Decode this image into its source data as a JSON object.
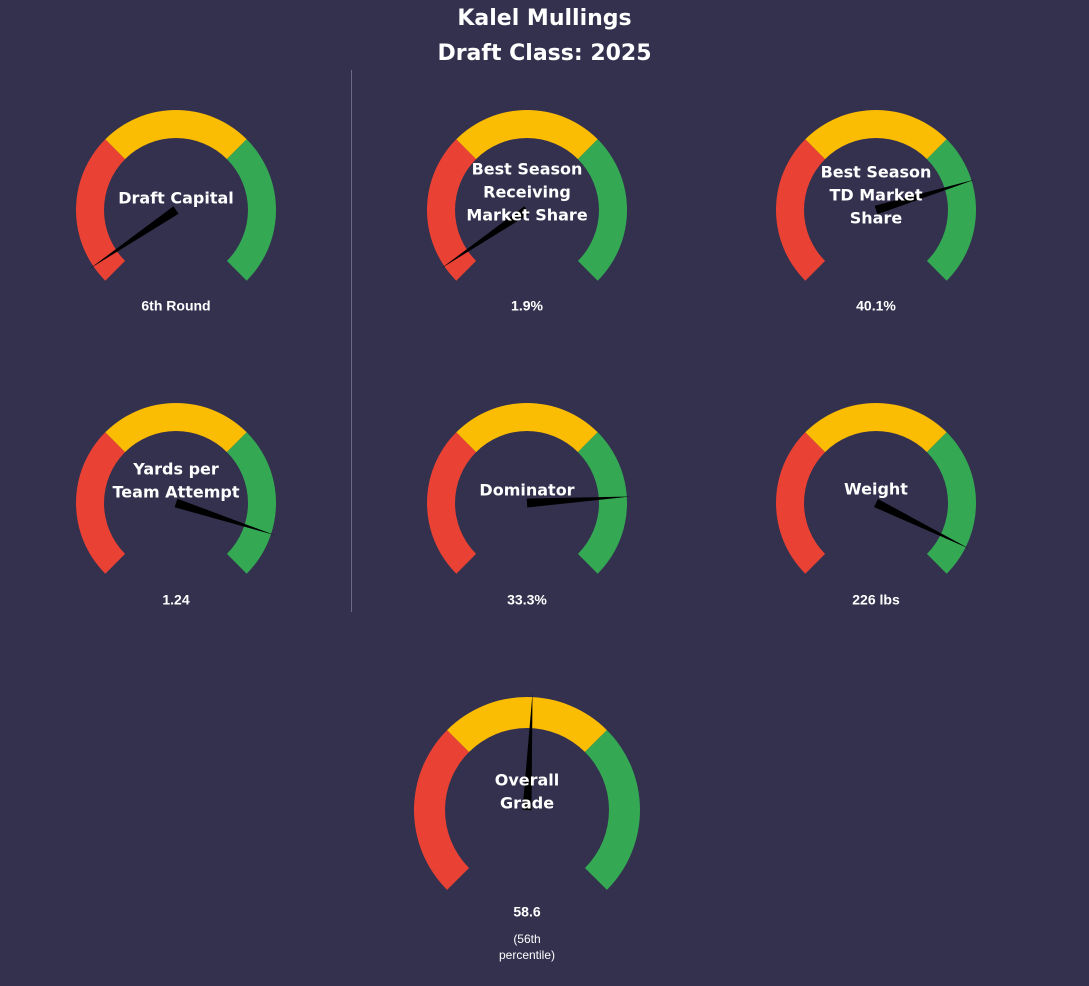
{
  "header": {
    "player_name": "Kalel Mullings",
    "draft_class": "Draft Class: 2025"
  },
  "colors": {
    "background": "#33314e",
    "low_zone": "#e94234",
    "mid_zone": "#fbbc04",
    "high_zone": "#34a853",
    "needle": "#000000",
    "text": "#ffffff"
  },
  "chart_data": [
    {
      "type": "gauge",
      "id": "draft-capital",
      "title_lines": [
        "Draft Capital"
      ],
      "value_label": "6th Round",
      "needle_fraction": 0.04
    },
    {
      "type": "gauge",
      "id": "receiving-market-share",
      "title_lines": [
        "Best Season",
        "Receiving",
        "Market Share"
      ],
      "value_label": "1.9%",
      "needle_fraction": 0.04
    },
    {
      "type": "gauge",
      "id": "td-market-share",
      "title_lines": [
        "Best Season",
        "TD Market",
        "Share"
      ],
      "value_label": "40.1%",
      "needle_fraction": 0.77
    },
    {
      "type": "gauge",
      "id": "yards-per-team-attempt",
      "title_lines": [
        "Yards per",
        "Team Attempt"
      ],
      "value_label": "1.24",
      "needle_fraction": 0.9
    },
    {
      "type": "gauge",
      "id": "dominator",
      "title_lines": [
        "Dominator"
      ],
      "value_label": "33.3%",
      "needle_fraction": 0.82
    },
    {
      "type": "gauge",
      "id": "weight",
      "title_lines": [
        "Weight"
      ],
      "value_label": "226 lbs",
      "needle_fraction": 0.93
    },
    {
      "type": "gauge",
      "id": "overall-grade",
      "title_lines": [
        "Overall",
        "Grade"
      ],
      "value_label": "58.6",
      "sub_label_lines": [
        "(56th",
        "percentile)"
      ],
      "needle_fraction": 0.51
    }
  ]
}
